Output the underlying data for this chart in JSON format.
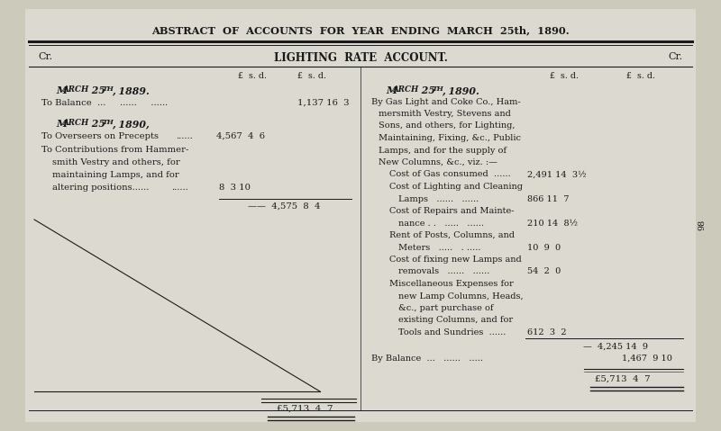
{
  "title": "ABSTRACT OF ACCOUNTS FOR YEAR ENDING MARCH 25th, 1890.",
  "account_title": "LIGHTING RATE ACCOUNT.",
  "bg_color": "#cccaba",
  "inner_bg": "#d4d0c4",
  "text_color": "#1a1a1a",
  "left_label": "Cr.",
  "right_label": "Cr.",
  "page_number": "98",
  "figsize": [
    8.0,
    4.79
  ],
  "dpi": 100
}
